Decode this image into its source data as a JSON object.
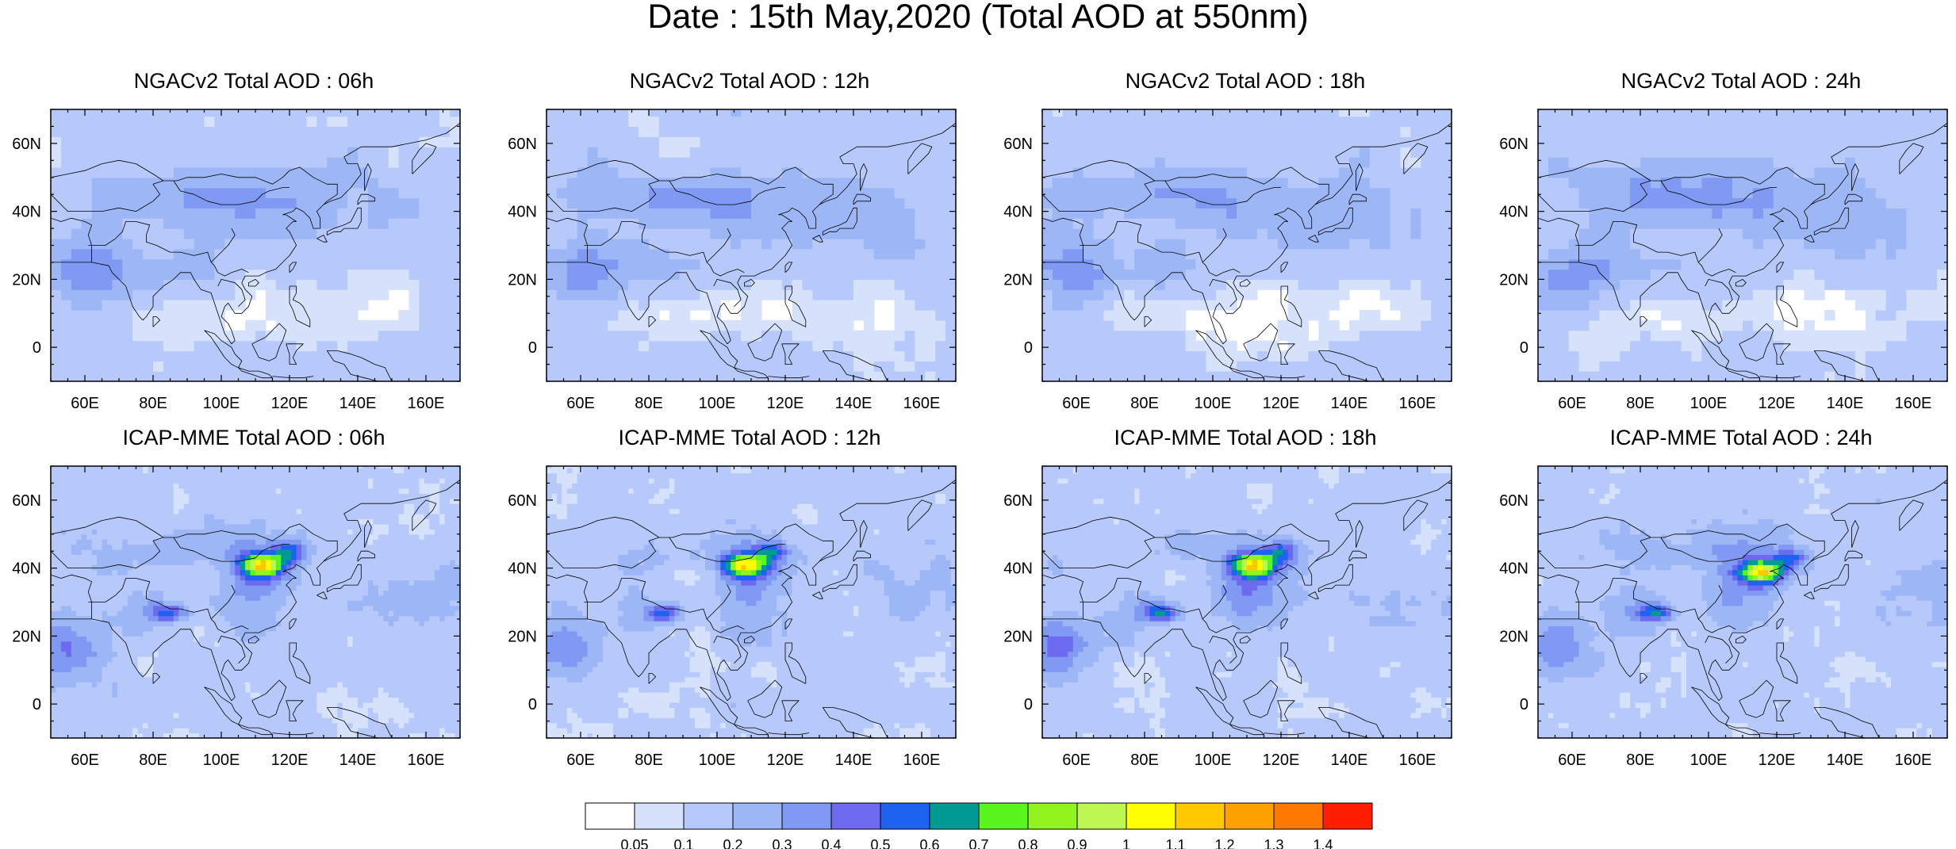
{
  "figure": {
    "title": "Date : 15th May,2020 (Total AOD at 550nm)"
  },
  "axes": {
    "lon_ticks": [
      "60E",
      "80E",
      "100E",
      "120E",
      "140E",
      "160E"
    ],
    "lon_values": [
      60,
      80,
      100,
      120,
      140,
      160
    ],
    "lat_ticks": [
      "60N",
      "40N",
      "20N",
      "0"
    ],
    "lat_values": [
      60,
      40,
      20,
      0
    ],
    "lon_range": [
      50,
      170
    ],
    "lat_range": [
      -10,
      70
    ]
  },
  "panels": [
    {
      "title": "NGACv2 Total AOD : 06h",
      "model": "NGAC",
      "hour": 6
    },
    {
      "title": "NGACv2 Total AOD : 12h",
      "model": "NGAC",
      "hour": 12
    },
    {
      "title": "NGACv2 Total AOD : 18h",
      "model": "NGAC",
      "hour": 18
    },
    {
      "title": "NGACv2 Total AOD : 24h",
      "model": "NGAC",
      "hour": 24
    },
    {
      "title": "ICAP-MME Total AOD : 06h",
      "model": "ICAP",
      "hour": 6
    },
    {
      "title": "ICAP-MME Total AOD : 12h",
      "model": "ICAP",
      "hour": 12
    },
    {
      "title": "ICAP-MME Total AOD : 18h",
      "model": "ICAP",
      "hour": 18
    },
    {
      "title": "ICAP-MME Total AOD : 24h",
      "model": "ICAP",
      "hour": 24
    }
  ],
  "colorbar": {
    "labels": [
      "0.05",
      "0.1",
      "0.2",
      "0.3",
      "0.4",
      "0.5",
      "0.6",
      "0.7",
      "0.8",
      "0.9",
      "1",
      "1.1",
      "1.2",
      "1.3",
      "1.4"
    ],
    "colors": [
      "#ffffff",
      "#d6e1fc",
      "#b7c9fa",
      "#9db7f6",
      "#8099f3",
      "#6d6af0",
      "#1e63f0",
      "#009b94",
      "#5af51f",
      "#92f41f",
      "#bdf74f",
      "#ffff00",
      "#ffc800",
      "#ffa000",
      "#ff7800",
      "#ff1e00"
    ]
  }
}
